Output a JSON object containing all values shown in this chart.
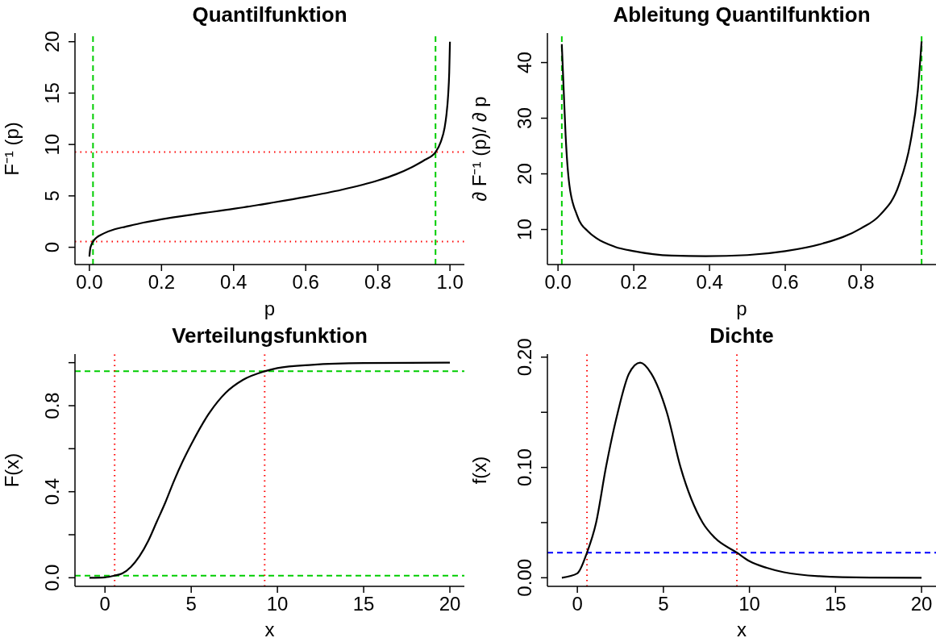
{
  "chart_data": [
    {
      "type": "line",
      "title": "Quantilfunktion",
      "xlabel": "p",
      "ylabel": "F⁻¹ (p)",
      "xlim": [
        -0.04,
        1.04
      ],
      "ylim": [
        -1.68,
        20.84
      ],
      "xticks": [
        {
          "value": 0,
          "label": "0.0"
        },
        {
          "value": 0.2,
          "label": "0.2"
        },
        {
          "value": 0.4,
          "label": "0.4"
        },
        {
          "value": 0.6,
          "label": "0.6"
        },
        {
          "value": 0.8,
          "label": "0.8"
        },
        {
          "value": 1,
          "label": "1.0"
        }
      ],
      "yticks": [
        0,
        5,
        10,
        15,
        20
      ],
      "series": [
        {
          "color": "#000000",
          "x": [
            0,
            0.002,
            0.005,
            0.01,
            0.02,
            0.04,
            0.07,
            0.1,
            0.15,
            0.2,
            0.3,
            0.4,
            0.5,
            0.6,
            0.7,
            0.8,
            0.85,
            0.9,
            0.93,
            0.96,
            0.975,
            0.985,
            0.99,
            0.995,
            0.998,
            1
          ],
          "values": [
            -0.9,
            -0.2,
            0.2,
            0.55,
            0.95,
            1.35,
            1.75,
            2.0,
            2.4,
            2.73,
            3.25,
            3.74,
            4.3,
            4.9,
            5.6,
            6.5,
            7.1,
            7.9,
            8.5,
            9.26,
            10.3,
            11.6,
            12.8,
            14.8,
            17,
            20
          ]
        }
      ],
      "ref_lines": [
        {
          "axis": "x",
          "value": 0.01,
          "color": "#00cd00",
          "line_style": "dashed"
        },
        {
          "axis": "x",
          "value": 0.96,
          "color": "#00cd00",
          "line_style": "dashed"
        },
        {
          "axis": "y",
          "value": 0.55,
          "color": "#ff0000",
          "line_style": "dotted"
        },
        {
          "axis": "y",
          "value": 9.26,
          "color": "#ff0000",
          "line_style": "dotted"
        }
      ]
    },
    {
      "type": "line",
      "title": "Ableitung Quantilfunktion",
      "xlabel": "p",
      "ylabel": "∂ F⁻¹ (p)/ ∂ p",
      "xlim": [
        -0.028,
        0.998
      ],
      "ylim": [
        3.7,
        45.3
      ],
      "xticks": [
        {
          "value": 0,
          "label": "0.0"
        },
        {
          "value": 0.2,
          "label": "0.2"
        },
        {
          "value": 0.4,
          "label": "0.4"
        },
        {
          "value": 0.6,
          "label": "0.6"
        },
        {
          "value": 0.8,
          "label": "0.8"
        }
      ],
      "yticks": [
        10,
        20,
        30,
        40
      ],
      "series": [
        {
          "color": "#000000",
          "x": [
            0.01,
            0.015,
            0.02,
            0.03,
            0.05,
            0.08,
            0.1,
            0.15,
            0.2,
            0.3,
            0.39,
            0.5,
            0.6,
            0.7,
            0.8,
            0.85,
            0.9,
            0.93,
            0.95,
            0.96
          ],
          "values": [
            43.3,
            35,
            27,
            18,
            12.6,
            9.6,
            8.5,
            6.9,
            6.1,
            5.3,
            5.2,
            5.4,
            6.1,
            7.5,
            10.2,
            12.6,
            18,
            25.5,
            35,
            43.8
          ]
        }
      ],
      "ref_lines": [
        {
          "axis": "x",
          "value": 0.01,
          "color": "#00cd00",
          "line_style": "dashed"
        },
        {
          "axis": "x",
          "value": 0.96,
          "color": "#00cd00",
          "line_style": "dashed"
        }
      ]
    },
    {
      "type": "line",
      "title": "Verteilungsfunktion",
      "xlabel": "x",
      "ylabel": "F(x)",
      "xlim": [
        -1.74,
        20.84
      ],
      "ylim": [
        -0.04,
        1.04
      ],
      "xticks": [
        0,
        5,
        10,
        15,
        20
      ],
      "yticks": [
        {
          "value": 0,
          "label": "0.0"
        },
        {
          "value": 0.2,
          "label": null
        },
        {
          "value": 0.4,
          "label": "0.4"
        },
        {
          "value": 0.6,
          "label": null
        },
        {
          "value": 0.8,
          "label": "0.8"
        },
        {
          "value": 1,
          "label": null
        }
      ],
      "series": [
        {
          "color": "#000000",
          "x": [
            -0.9,
            0,
            0.56,
            1,
            1.5,
            2,
            2.5,
            3,
            3.5,
            4,
            4.5,
            5,
            6,
            7,
            8,
            9.26,
            10,
            12,
            15,
            20
          ],
          "values": [
            0,
            0.002,
            0.01,
            0.02,
            0.05,
            0.1,
            0.17,
            0.26,
            0.35,
            0.45,
            0.54,
            0.62,
            0.76,
            0.86,
            0.92,
            0.96,
            0.975,
            0.99,
            0.998,
            1
          ]
        }
      ],
      "ref_lines": [
        {
          "axis": "y",
          "value": 0.01,
          "color": "#00cd00",
          "line_style": "dashed"
        },
        {
          "axis": "y",
          "value": 0.96,
          "color": "#00cd00",
          "line_style": "dashed"
        },
        {
          "axis": "x",
          "value": 0.56,
          "color": "#ff0000",
          "line_style": "dotted"
        },
        {
          "axis": "x",
          "value": 9.26,
          "color": "#ff0000",
          "line_style": "dotted"
        }
      ]
    },
    {
      "type": "line",
      "title": "Dichte",
      "xlabel": "x",
      "ylabel": "f(x)",
      "xlim": [
        -1.74,
        20.84
      ],
      "ylim": [
        -0.0078,
        0.2028
      ],
      "xticks": [
        0,
        5,
        10,
        15,
        20
      ],
      "yticks": [
        {
          "value": 0,
          "label": "0.00"
        },
        {
          "value": 0.05,
          "label": null
        },
        {
          "value": 0.1,
          "label": "0.10"
        },
        {
          "value": 0.15,
          "label": null
        },
        {
          "value": 0.2,
          "label": "0.20"
        }
      ],
      "series": [
        {
          "color": "#000000",
          "x": [
            -0.9,
            0,
            0.56,
            1.09,
            1.66,
            2.35,
            3,
            3.65,
            4.3,
            5.2,
            6,
            7.28,
            8,
            9.27,
            10,
            11,
            12,
            14,
            17,
            20
          ],
          "values": [
            0,
            0.004,
            0.0228,
            0.05,
            0.1,
            0.15,
            0.185,
            0.195,
            0.185,
            0.15,
            0.1,
            0.05,
            0.036,
            0.0228,
            0.015,
            0.009,
            0.005,
            0.0015,
            0.0002,
            0
          ]
        }
      ],
      "ref_lines": [
        {
          "axis": "y",
          "value": 0.0228,
          "color": "#0000ff",
          "line_style": "dashed"
        },
        {
          "axis": "x",
          "value": 0.56,
          "color": "#ff0000",
          "line_style": "dotted"
        },
        {
          "axis": "x",
          "value": 9.27,
          "color": "#ff0000",
          "line_style": "dotted"
        }
      ]
    }
  ]
}
